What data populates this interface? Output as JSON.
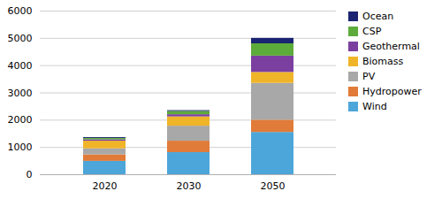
{
  "chart_data": {
    "type": "bar",
    "stacked": true,
    "categories": [
      "2020",
      "2030",
      "2050"
    ],
    "series": [
      {
        "name": "Wind",
        "color": "#4da6d9",
        "values": [
          490,
          810,
          1550
        ]
      },
      {
        "name": "Hydropower",
        "color": "#e07b39",
        "values": [
          240,
          420,
          450
        ]
      },
      {
        "name": "PV",
        "color": "#a8a8a8",
        "values": [
          220,
          550,
          1350
        ]
      },
      {
        "name": "Biomass",
        "color": "#f0b429",
        "values": [
          280,
          340,
          400
        ]
      },
      {
        "name": "Geothermal",
        "color": "#7b3fa0",
        "values": [
          50,
          80,
          600
        ]
      },
      {
        "name": "CSP",
        "color": "#5dab3b",
        "values": [
          50,
          120,
          450
        ]
      },
      {
        "name": "Ocean",
        "color": "#1a2472",
        "values": [
          30,
          30,
          200
        ]
      }
    ],
    "ylim": [
      0,
      6000
    ],
    "yticks": [
      0,
      1000,
      2000,
      3000,
      4000,
      5000,
      6000
    ],
    "grid": true,
    "legend": "right"
  }
}
